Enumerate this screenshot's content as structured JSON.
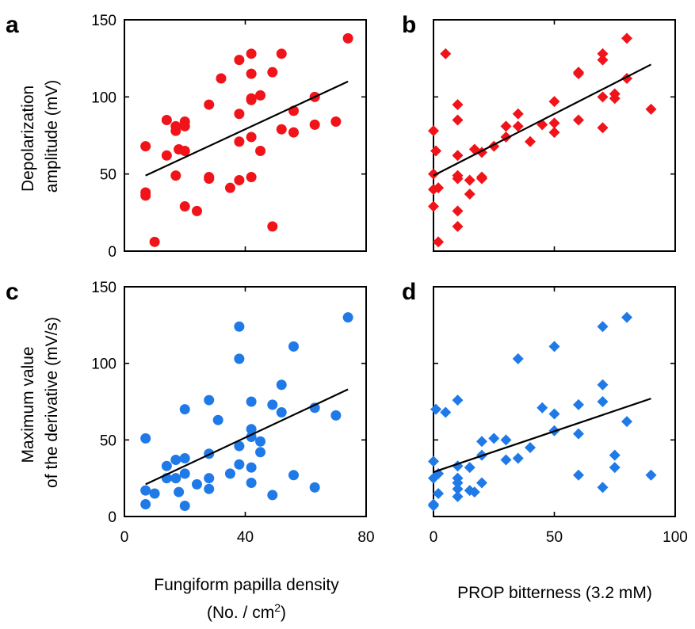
{
  "figure": {
    "ylabel_top": [
      "Depolarization",
      "amplitude (mV)"
    ],
    "ylabel_bottom": [
      "Maximum value",
      "of the derivative (mV/s)"
    ],
    "xlabel_left": [
      "Fungiform papilla density",
      "(No. / cm",
      "2",
      ")"
    ],
    "xlabel_right": "PROP bitterness (3.2 mM)"
  },
  "colors": {
    "red": "#f0141a",
    "blue": "#1f7ae8",
    "fit": "#000000"
  },
  "chart_data": [
    {
      "panel": "a",
      "type": "scatter",
      "marker": "circle",
      "color": "#f0141a",
      "xlim": [
        0,
        80
      ],
      "ylim": [
        0,
        150
      ],
      "xticks": [
        0,
        40,
        80
      ],
      "yticks": [
        0,
        50,
        100,
        150
      ],
      "points": [
        [
          7,
          68
        ],
        [
          7,
          38
        ],
        [
          7,
          36
        ],
        [
          10,
          6
        ],
        [
          14,
          85
        ],
        [
          14,
          62
        ],
        [
          17,
          49
        ],
        [
          17,
          78
        ],
        [
          17,
          81
        ],
        [
          18,
          66
        ],
        [
          20,
          65
        ],
        [
          20,
          81
        ],
        [
          20,
          84
        ],
        [
          20,
          29
        ],
        [
          24,
          26
        ],
        [
          28,
          95
        ],
        [
          28,
          48
        ],
        [
          28,
          47
        ],
        [
          32,
          112
        ],
        [
          35,
          41
        ],
        [
          38,
          89
        ],
        [
          38,
          71
        ],
        [
          38,
          46
        ],
        [
          38,
          124
        ],
        [
          42,
          99
        ],
        [
          42,
          98
        ],
        [
          42,
          74
        ],
        [
          42,
          48
        ],
        [
          42,
          115
        ],
        [
          42,
          128
        ],
        [
          45,
          65
        ],
        [
          45,
          101
        ],
        [
          49,
          116
        ],
        [
          49,
          16
        ],
        [
          52,
          128
        ],
        [
          52,
          79
        ],
        [
          56,
          77
        ],
        [
          56,
          91
        ],
        [
          63,
          82
        ],
        [
          63,
          100
        ],
        [
          70,
          84
        ],
        [
          74,
          138
        ]
      ],
      "fit": [
        [
          7,
          49
        ],
        [
          74,
          110
        ]
      ]
    },
    {
      "panel": "b",
      "type": "scatter",
      "marker": "diamond",
      "color": "#f0141a",
      "xlim": [
        0,
        100
      ],
      "ylim": [
        0,
        150
      ],
      "xticks": [
        0,
        50,
        100
      ],
      "yticks": [
        0,
        50,
        100,
        150
      ],
      "points": [
        [
          0,
          78
        ],
        [
          0,
          50
        ],
        [
          0,
          40
        ],
        [
          0,
          29
        ],
        [
          1,
          65
        ],
        [
          2,
          6
        ],
        [
          2,
          41
        ],
        [
          5,
          128
        ],
        [
          10,
          95
        ],
        [
          10,
          85
        ],
        [
          10,
          62
        ],
        [
          10,
          47
        ],
        [
          10,
          49
        ],
        [
          10,
          26
        ],
        [
          10,
          16
        ],
        [
          15,
          37
        ],
        [
          15,
          46
        ],
        [
          17,
          66
        ],
        [
          20,
          64
        ],
        [
          20,
          48
        ],
        [
          20,
          47
        ],
        [
          25,
          68
        ],
        [
          30,
          74
        ],
        [
          30,
          81
        ],
        [
          35,
          89
        ],
        [
          35,
          81
        ],
        [
          40,
          71
        ],
        [
          45,
          82
        ],
        [
          50,
          97
        ],
        [
          50,
          83
        ],
        [
          50,
          77
        ],
        [
          60,
          116
        ],
        [
          60,
          115
        ],
        [
          60,
          85
        ],
        [
          70,
          128
        ],
        [
          70,
          124
        ],
        [
          70,
          100
        ],
        [
          70,
          80
        ],
        [
          75,
          99
        ],
        [
          75,
          102
        ],
        [
          80,
          138
        ],
        [
          80,
          112
        ],
        [
          90,
          92
        ]
      ],
      "fit": [
        [
          0,
          49
        ],
        [
          90,
          121
        ]
      ]
    },
    {
      "panel": "c",
      "type": "scatter",
      "marker": "circle",
      "color": "#1f7ae8",
      "xlim": [
        0,
        80
      ],
      "ylim": [
        0,
        150
      ],
      "xticks": [
        0,
        40,
        80
      ],
      "yticks": [
        0,
        50,
        100,
        150
      ],
      "points": [
        [
          7,
          51
        ],
        [
          7,
          17
        ],
        [
          7,
          8
        ],
        [
          10,
          15
        ],
        [
          14,
          33
        ],
        [
          14,
          25
        ],
        [
          17,
          37
        ],
        [
          17,
          25
        ],
        [
          18,
          16
        ],
        [
          20,
          70
        ],
        [
          20,
          38
        ],
        [
          20,
          28
        ],
        [
          20,
          7
        ],
        [
          24,
          21
        ],
        [
          28,
          76
        ],
        [
          28,
          41
        ],
        [
          28,
          25
        ],
        [
          28,
          18
        ],
        [
          31,
          63
        ],
        [
          35,
          28
        ],
        [
          38,
          124
        ],
        [
          38,
          103
        ],
        [
          38,
          46
        ],
        [
          38,
          34
        ],
        [
          42,
          75
        ],
        [
          42,
          57
        ],
        [
          42,
          52
        ],
        [
          42,
          32
        ],
        [
          42,
          22
        ],
        [
          45,
          49
        ],
        [
          45,
          42
        ],
        [
          49,
          73
        ],
        [
          49,
          14
        ],
        [
          52,
          86
        ],
        [
          52,
          68
        ],
        [
          56,
          111
        ],
        [
          56,
          27
        ],
        [
          63,
          71
        ],
        [
          63,
          19
        ],
        [
          70,
          66
        ],
        [
          74,
          130
        ]
      ],
      "fit": [
        [
          7,
          21
        ],
        [
          74,
          83
        ]
      ]
    },
    {
      "panel": "d",
      "type": "scatter",
      "marker": "diamond",
      "color": "#1f7ae8",
      "xlim": [
        0,
        100
      ],
      "ylim": [
        0,
        150
      ],
      "xticks": [
        0,
        50,
        100
      ],
      "yticks": [
        0,
        50,
        100,
        150
      ],
      "points": [
        [
          0,
          36
        ],
        [
          0,
          25
        ],
        [
          0,
          8
        ],
        [
          0,
          7
        ],
        [
          1,
          70
        ],
        [
          2,
          15
        ],
        [
          2,
          28
        ],
        [
          5,
          68
        ],
        [
          10,
          76
        ],
        [
          10,
          33
        ],
        [
          10,
          25
        ],
        [
          10,
          22
        ],
        [
          10,
          18
        ],
        [
          10,
          13
        ],
        [
          15,
          32
        ],
        [
          15,
          17
        ],
        [
          17,
          16
        ],
        [
          20,
          49
        ],
        [
          20,
          40
        ],
        [
          20,
          22
        ],
        [
          25,
          51
        ],
        [
          30,
          50
        ],
        [
          30,
          37
        ],
        [
          35,
          103
        ],
        [
          35,
          38
        ],
        [
          40,
          45
        ],
        [
          45,
          71
        ],
        [
          50,
          111
        ],
        [
          50,
          67
        ],
        [
          50,
          56
        ],
        [
          60,
          73
        ],
        [
          60,
          54
        ],
        [
          60,
          27
        ],
        [
          70,
          124
        ],
        [
          70,
          86
        ],
        [
          70,
          75
        ],
        [
          70,
          19
        ],
        [
          75,
          40
        ],
        [
          75,
          32
        ],
        [
          80,
          130
        ],
        [
          80,
          62
        ],
        [
          90,
          27
        ]
      ],
      "fit": [
        [
          0,
          29
        ],
        [
          90,
          77
        ]
      ]
    }
  ]
}
